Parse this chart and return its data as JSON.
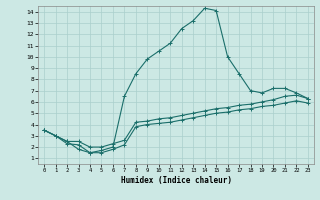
{
  "xlabel": "Humidex (Indice chaleur)",
  "bg_color": "#cce8e4",
  "grid_color": "#aacfcc",
  "line_color": "#1a6e6a",
  "xlim": [
    -0.5,
    23.5
  ],
  "ylim": [
    0.5,
    14.5
  ],
  "xticks": [
    0,
    1,
    2,
    3,
    4,
    5,
    6,
    7,
    8,
    9,
    10,
    11,
    12,
    13,
    14,
    15,
    16,
    17,
    18,
    19,
    20,
    21,
    22,
    23
  ],
  "yticks": [
    1,
    2,
    3,
    4,
    5,
    6,
    7,
    8,
    9,
    10,
    11,
    12,
    13,
    14
  ],
  "series1_x": [
    0,
    1,
    2,
    3,
    4,
    5,
    6,
    7,
    8,
    9,
    10,
    11,
    12,
    13,
    14,
    15,
    16,
    17,
    18,
    19,
    20,
    21,
    22,
    23
  ],
  "series1_y": [
    3.5,
    3.0,
    2.5,
    1.8,
    1.5,
    1.7,
    2.0,
    6.5,
    8.5,
    9.8,
    10.5,
    11.2,
    12.5,
    13.2,
    14.3,
    14.1,
    10.0,
    8.5,
    7.0,
    6.8,
    7.2,
    7.2,
    6.8,
    6.3
  ],
  "series2_x": [
    0,
    1,
    2,
    3,
    4,
    5,
    6,
    7,
    8,
    9,
    10,
    11,
    12,
    13,
    14,
    15,
    16,
    17,
    18,
    19,
    20,
    21,
    22,
    23
  ],
  "series2_y": [
    3.5,
    3.0,
    2.5,
    2.5,
    2.0,
    2.0,
    2.3,
    2.6,
    4.2,
    4.3,
    4.5,
    4.6,
    4.8,
    5.0,
    5.2,
    5.4,
    5.5,
    5.7,
    5.8,
    6.0,
    6.2,
    6.5,
    6.6,
    6.3
  ],
  "series3_x": [
    0,
    1,
    2,
    3,
    4,
    5,
    6,
    7,
    8,
    9,
    10,
    11,
    12,
    13,
    14,
    15,
    16,
    17,
    18,
    19,
    20,
    21,
    22,
    23
  ],
  "series3_y": [
    3.5,
    3.0,
    2.3,
    2.2,
    1.5,
    1.5,
    1.8,
    2.2,
    3.8,
    4.0,
    4.1,
    4.2,
    4.4,
    4.6,
    4.8,
    5.0,
    5.1,
    5.3,
    5.4,
    5.6,
    5.7,
    5.9,
    6.1,
    5.9
  ]
}
